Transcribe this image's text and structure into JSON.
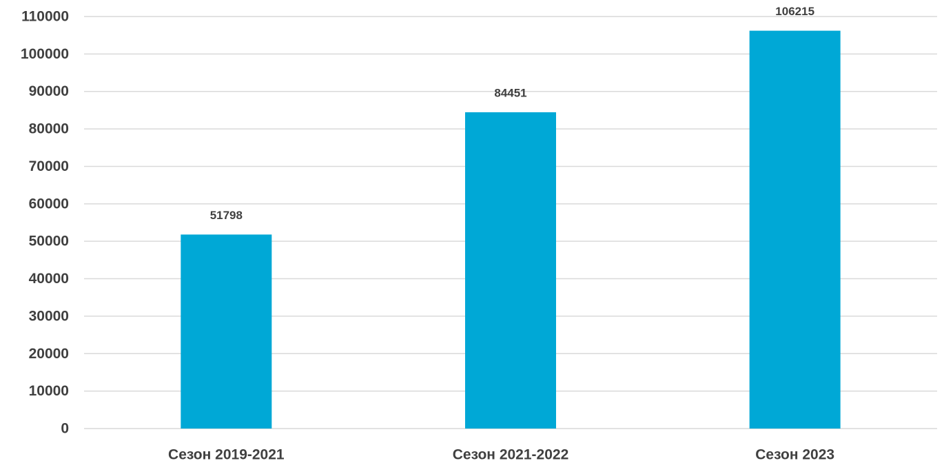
{
  "chart_data": {
    "type": "bar",
    "title": "",
    "xlabel": "",
    "ylabel": "",
    "categories": [
      "Сезон 2019-2021",
      "Сезон 2021-2022",
      "Сезон 2023"
    ],
    "series": [
      {
        "values": [
          51798,
          84451,
          106215
        ],
        "color": "#00a8d6"
      }
    ],
    "ylim": [
      0,
      110000
    ],
    "y_ticks": [
      0,
      10000,
      20000,
      30000,
      40000,
      50000,
      60000,
      70000,
      80000,
      90000,
      100000,
      110000
    ],
    "data_labels": [
      "51798",
      "84451",
      "106215"
    ],
    "grid": true,
    "legend": "none"
  },
  "colors": {
    "bar": "#00a8d6",
    "grid": "#d9d9d9",
    "text": "#404040",
    "background": "#ffffff"
  }
}
